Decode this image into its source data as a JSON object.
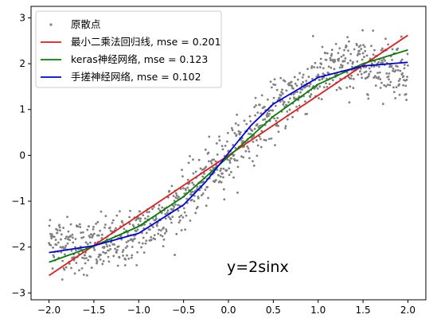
{
  "chart_data": {
    "type": "scatter",
    "annotation": "y=2sinx",
    "xlim": [
      -2.2,
      2.2
    ],
    "ylim": [
      -3.15,
      3.25
    ],
    "xticks": [
      -2.0,
      -1.5,
      -1.0,
      -0.5,
      0.0,
      0.5,
      1.0,
      1.5,
      2.0
    ],
    "xtick_labels": [
      "−2.0",
      "−1.5",
      "−1.0",
      "−0.5",
      "0.0",
      "0.5",
      "1.0",
      "1.5",
      "2.0"
    ],
    "yticks": [
      -3,
      -2,
      -1,
      0,
      1,
      2,
      3
    ],
    "ytick_labels": [
      "−3",
      "−2",
      "−1",
      "0",
      "1",
      "2",
      "3"
    ],
    "grid": false,
    "legend_position": "top-left",
    "scatter": {
      "name": "原散点",
      "color": "#808080",
      "x_range": [
        -2.0,
        2.0
      ],
      "count": 1000,
      "function": "2*sin(x)",
      "noise_sd": 0.3
    },
    "series": [
      {
        "name": "最小二乘法回归线, mse = 0.201",
        "color": "#e31a1c",
        "x": [
          -2.0,
          2.0
        ],
        "y": [
          -2.62,
          2.62
        ]
      },
      {
        "name": "keras神经网络, mse = 0.123",
        "color": "#008000",
        "x": [
          -2.0,
          -1.5,
          -1.0,
          -0.5,
          0.0,
          0.5,
          1.0,
          1.5,
          2.0
        ],
        "y": [
          -2.33,
          -1.98,
          -1.55,
          -0.9,
          -0.03,
          0.85,
          1.55,
          2.0,
          2.3
        ]
      },
      {
        "name": "手搓神经网络, mse = 0.102",
        "color": "#0000e6",
        "x": [
          -2.0,
          -1.5,
          -1.0,
          -0.5,
          -0.25,
          0.0,
          0.25,
          0.5,
          1.0,
          1.5,
          2.0
        ],
        "y": [
          -2.12,
          -1.97,
          -1.7,
          -1.08,
          -0.57,
          0.05,
          0.65,
          1.12,
          1.7,
          1.95,
          2.03
        ]
      }
    ]
  }
}
